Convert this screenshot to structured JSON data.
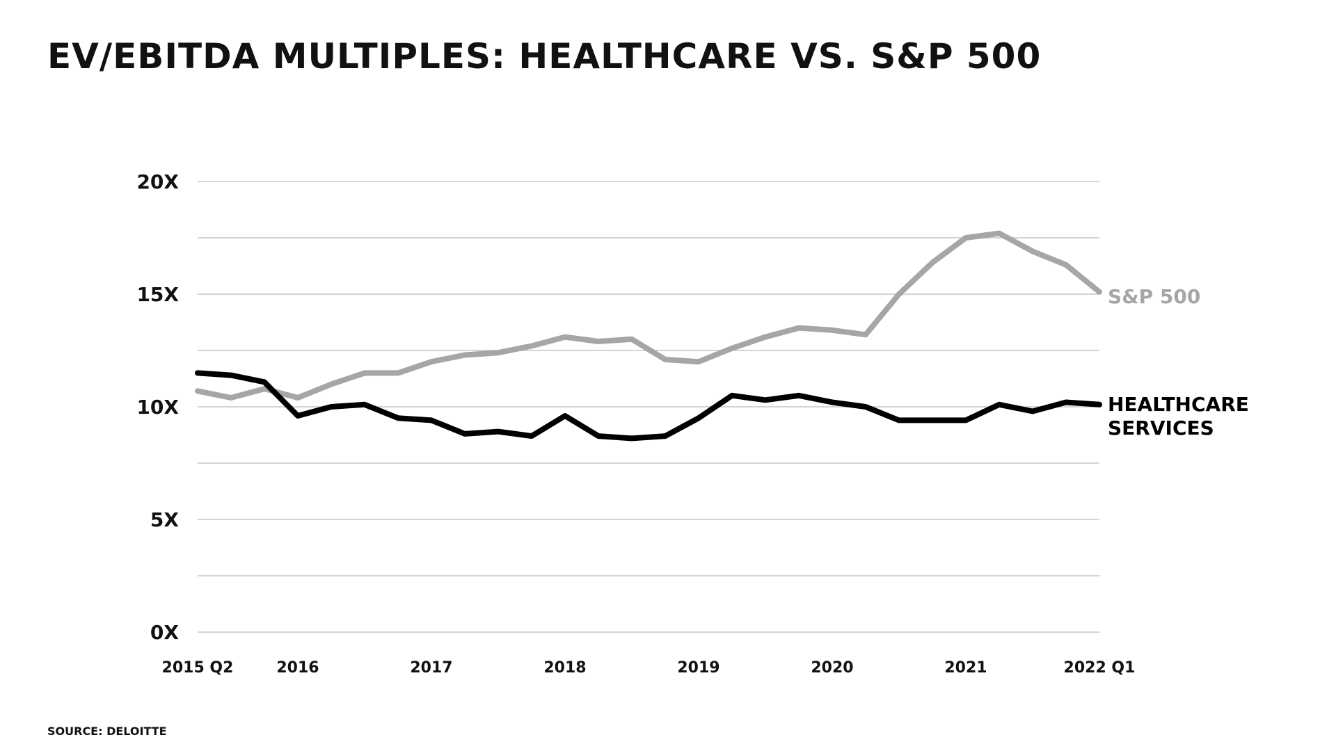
{
  "chart_data": {
    "type": "line",
    "title": "EV/EBITDA MULTIPLES: HEALTHCARE VS. S&P 500",
    "xlabel": "",
    "ylabel": "",
    "ylim": [
      0,
      20
    ],
    "y_ticks": [
      "0X",
      "5X",
      "10X",
      "15X",
      "20X"
    ],
    "x": [
      "2015 Q2",
      "2015 Q3",
      "2015 Q4",
      "2016 Q1",
      "2016 Q2",
      "2016 Q3",
      "2016 Q4",
      "2017 Q1",
      "2017 Q2",
      "2017 Q3",
      "2017 Q4",
      "2018 Q1",
      "2018 Q2",
      "2018 Q3",
      "2018 Q4",
      "2019 Q1",
      "2019 Q2",
      "2019 Q3",
      "2019 Q4",
      "2020 Q1",
      "2020 Q2",
      "2020 Q3",
      "2020 Q4",
      "2021 Q1",
      "2021 Q2",
      "2021 Q3",
      "2021 Q4",
      "2022 Q1"
    ],
    "x_tick_labels": [
      {
        "label": "2015 Q2",
        "index": 0
      },
      {
        "label": "2016",
        "index": 3
      },
      {
        "label": "2017",
        "index": 7
      },
      {
        "label": "2018",
        "index": 11
      },
      {
        "label": "2019",
        "index": 15
      },
      {
        "label": "2020",
        "index": 19
      },
      {
        "label": "2021",
        "index": 23
      },
      {
        "label": "2022 Q1",
        "index": 27
      }
    ],
    "grid": "horizontal",
    "gridline_step": 2.5,
    "series": [
      {
        "name": "S&P 500",
        "color": "#a6a6a6",
        "values": [
          10.7,
          10.4,
          10.8,
          10.4,
          11.0,
          11.5,
          11.5,
          12.0,
          12.3,
          12.4,
          12.7,
          13.1,
          12.9,
          13.0,
          12.1,
          12.0,
          12.6,
          13.1,
          13.5,
          13.4,
          13.2,
          15.0,
          16.4,
          17.5,
          17.7,
          16.9,
          16.3,
          15.1
        ]
      },
      {
        "name": "HEALTHCARE SERVICES",
        "label_lines": [
          "HEALTHCARE",
          "SERVICES"
        ],
        "color": "#000000",
        "values": [
          11.5,
          11.4,
          11.1,
          9.6,
          10.0,
          10.1,
          9.5,
          9.4,
          8.8,
          8.9,
          8.7,
          9.6,
          8.7,
          8.6,
          8.7,
          9.5,
          10.5,
          10.3,
          10.5,
          10.2,
          10.0,
          9.4,
          9.4,
          9.4,
          10.1,
          9.8,
          10.2,
          10.1
        ]
      }
    ]
  },
  "source": "SOURCE: DELOITTE"
}
